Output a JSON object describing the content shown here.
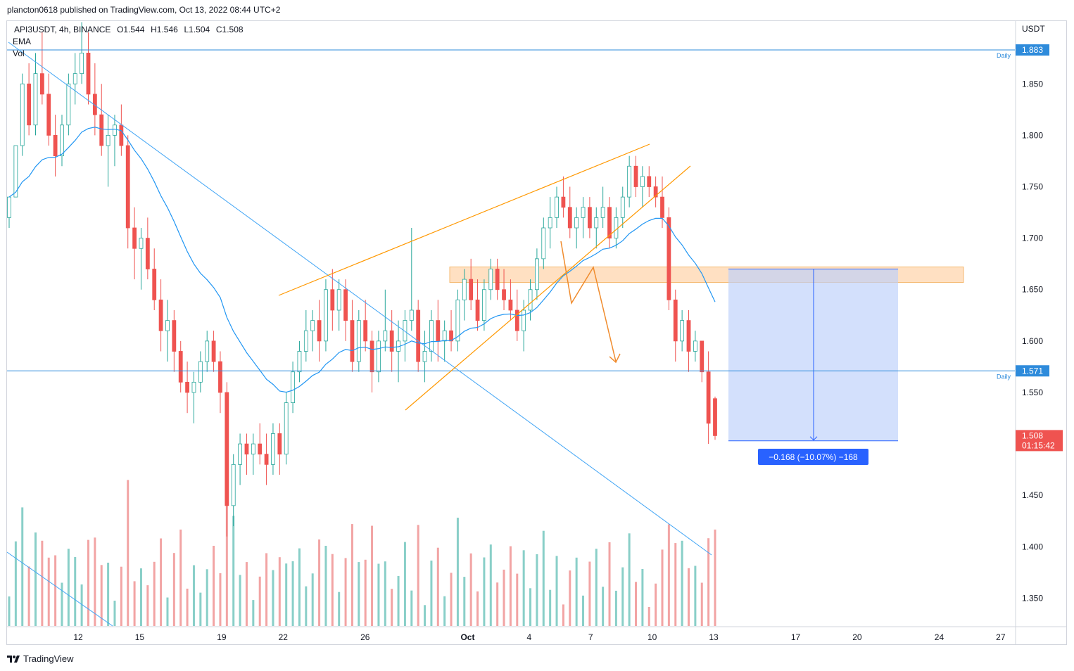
{
  "header": {
    "published": "plancton0618 published on TradingView.com, Oct 13, 2022 08:44 UTC+2"
  },
  "legend": {
    "symbol": "API3USDT, 4h, BINANCE",
    "open": "O1.544",
    "high": "H1.546",
    "low": "L1.504",
    "close": "C1.508",
    "indicators": [
      "EMA",
      "Vol"
    ]
  },
  "footer": {
    "brand": "TradingView"
  },
  "colors": {
    "up": "#26a69a",
    "down": "#ef5350",
    "vol_up": "#89cfc8",
    "vol_down": "#f2a4a4",
    "ema": "#2196f3",
    "trend": "#42a5f5",
    "wedge": "#ff9800",
    "zone": "#ffcc99",
    "measure": "#2962ff",
    "measure_fill": "#bbcffb",
    "price_tag": "#ef5350",
    "daily_tag": "#2e8bdb"
  },
  "chart_data": {
    "type": "candlestick",
    "symbol": "API3USDT",
    "interval": "4h",
    "exchange": "BINANCE",
    "y_axis": {
      "unit": "USDT",
      "ticks": [
        1.85,
        1.8,
        1.75,
        1.7,
        1.65,
        1.6,
        1.55,
        1.45,
        1.4,
        1.35
      ],
      "tick_labels": [
        "1.850",
        "1.800",
        "1.750",
        "1.700",
        "1.650",
        "1.600",
        "1.550",
        "1.450",
        "1.400",
        "1.350"
      ],
      "range": [
        1.32,
        1.926
      ]
    },
    "x_axis": {
      "ticks": [
        "12",
        "15",
        "19",
        "22",
        "26",
        "Oct",
        "4",
        "7",
        "10",
        "13",
        "17",
        "20",
        "24",
        "27"
      ],
      "tick_day_index": [
        12,
        15,
        19,
        22,
        26,
        31,
        34,
        37,
        40,
        43,
        47,
        50,
        54,
        57
      ],
      "range_days": [
        8.6,
        60.2
      ]
    },
    "horizontal_levels": [
      {
        "label": "1.883",
        "price": 1.883,
        "note": "Daily"
      },
      {
        "label": "1.571",
        "price": 1.571,
        "note": "Daily"
      }
    ],
    "last_price": {
      "label": "1.508",
      "price": 1.508,
      "countdown": "01:15:42"
    },
    "measure": {
      "label": "−0.168 (−10.07%) −168",
      "from_price": 1.67,
      "to_price": 1.503
    },
    "zone": {
      "top_price": 1.672,
      "bottom_price": 1.657
    },
    "candles": [
      [
        1.72,
        1.74,
        1.71,
        1.74
      ],
      [
        1.74,
        1.79,
        1.74,
        1.79
      ],
      [
        1.79,
        1.86,
        1.78,
        1.85
      ],
      [
        1.85,
        1.87,
        1.8,
        1.81
      ],
      [
        1.81,
        1.88,
        1.8,
        1.86
      ],
      [
        1.86,
        1.9,
        1.83,
        1.84
      ],
      [
        1.84,
        1.86,
        1.79,
        1.8
      ],
      [
        1.8,
        1.82,
        1.76,
        1.78
      ],
      [
        1.78,
        1.82,
        1.77,
        1.81
      ],
      [
        1.81,
        1.86,
        1.8,
        1.85
      ],
      [
        1.85,
        1.88,
        1.83,
        1.86
      ],
      [
        1.86,
        1.91,
        1.85,
        1.88
      ],
      [
        1.88,
        1.9,
        1.83,
        1.84
      ],
      [
        1.84,
        1.87,
        1.8,
        1.82
      ],
      [
        1.82,
        1.85,
        1.78,
        1.79
      ],
      [
        1.79,
        1.82,
        1.75,
        1.8
      ],
      [
        1.8,
        1.82,
        1.77,
        1.81
      ],
      [
        1.81,
        1.83,
        1.78,
        1.79
      ],
      [
        1.79,
        1.8,
        1.69,
        1.71
      ],
      [
        1.71,
        1.73,
        1.66,
        1.69
      ],
      [
        1.69,
        1.71,
        1.65,
        1.7
      ],
      [
        1.7,
        1.72,
        1.66,
        1.67
      ],
      [
        1.67,
        1.69,
        1.63,
        1.64
      ],
      [
        1.64,
        1.66,
        1.59,
        1.61
      ],
      [
        1.61,
        1.64,
        1.58,
        1.62
      ],
      [
        1.62,
        1.63,
        1.57,
        1.59
      ],
      [
        1.59,
        1.6,
        1.55,
        1.56
      ],
      [
        1.56,
        1.58,
        1.53,
        1.55
      ],
      [
        1.55,
        1.57,
        1.52,
        1.56
      ],
      [
        1.56,
        1.59,
        1.55,
        1.58
      ],
      [
        1.58,
        1.61,
        1.57,
        1.6
      ],
      [
        1.6,
        1.61,
        1.57,
        1.58
      ],
      [
        1.58,
        1.59,
        1.53,
        1.55
      ],
      [
        1.55,
        1.56,
        1.41,
        1.44
      ],
      [
        1.44,
        1.49,
        1.42,
        1.48
      ],
      [
        1.48,
        1.51,
        1.46,
        1.5
      ],
      [
        1.5,
        1.51,
        1.47,
        1.49
      ],
      [
        1.49,
        1.51,
        1.47,
        1.5
      ],
      [
        1.5,
        1.52,
        1.48,
        1.49
      ],
      [
        1.49,
        1.51,
        1.46,
        1.48
      ],
      [
        1.48,
        1.52,
        1.47,
        1.51
      ],
      [
        1.51,
        1.52,
        1.47,
        1.49
      ],
      [
        1.49,
        1.55,
        1.48,
        1.54
      ],
      [
        1.54,
        1.58,
        1.53,
        1.57
      ],
      [
        1.57,
        1.6,
        1.56,
        1.59
      ],
      [
        1.59,
        1.63,
        1.58,
        1.61
      ],
      [
        1.61,
        1.63,
        1.59,
        1.62
      ],
      [
        1.62,
        1.64,
        1.58,
        1.6
      ],
      [
        1.6,
        1.66,
        1.59,
        1.65
      ],
      [
        1.65,
        1.67,
        1.61,
        1.63
      ],
      [
        1.63,
        1.66,
        1.61,
        1.65
      ],
      [
        1.65,
        1.66,
        1.6,
        1.62
      ],
      [
        1.62,
        1.64,
        1.57,
        1.58
      ],
      [
        1.58,
        1.63,
        1.57,
        1.62
      ],
      [
        1.62,
        1.64,
        1.59,
        1.6
      ],
      [
        1.6,
        1.61,
        1.55,
        1.57
      ],
      [
        1.57,
        1.61,
        1.56,
        1.6
      ],
      [
        1.6,
        1.65,
        1.59,
        1.61
      ],
      [
        1.61,
        1.63,
        1.57,
        1.59
      ],
      [
        1.59,
        1.62,
        1.56,
        1.6
      ],
      [
        1.6,
        1.63,
        1.58,
        1.62
      ],
      [
        1.62,
        1.71,
        1.61,
        1.63
      ],
      [
        1.63,
        1.64,
        1.57,
        1.58
      ],
      [
        1.58,
        1.61,
        1.56,
        1.59
      ],
      [
        1.59,
        1.63,
        1.58,
        1.62
      ],
      [
        1.62,
        1.64,
        1.58,
        1.6
      ],
      [
        1.6,
        1.62,
        1.58,
        1.61
      ],
      [
        1.61,
        1.63,
        1.59,
        1.6
      ],
      [
        1.6,
        1.65,
        1.59,
        1.64
      ],
      [
        1.64,
        1.67,
        1.62,
        1.66
      ],
      [
        1.66,
        1.68,
        1.63,
        1.64
      ],
      [
        1.64,
        1.66,
        1.61,
        1.62
      ],
      [
        1.62,
        1.66,
        1.61,
        1.65
      ],
      [
        1.65,
        1.68,
        1.64,
        1.67
      ],
      [
        1.67,
        1.68,
        1.64,
        1.65
      ],
      [
        1.65,
        1.67,
        1.63,
        1.64
      ],
      [
        1.64,
        1.66,
        1.62,
        1.63
      ],
      [
        1.63,
        1.65,
        1.6,
        1.61
      ],
      [
        1.61,
        1.64,
        1.59,
        1.63
      ],
      [
        1.63,
        1.66,
        1.62,
        1.65
      ],
      [
        1.65,
        1.69,
        1.64,
        1.68
      ],
      [
        1.68,
        1.72,
        1.67,
        1.71
      ],
      [
        1.71,
        1.74,
        1.69,
        1.72
      ],
      [
        1.72,
        1.75,
        1.71,
        1.74
      ],
      [
        1.74,
        1.76,
        1.72,
        1.73
      ],
      [
        1.73,
        1.75,
        1.7,
        1.71
      ],
      [
        1.71,
        1.73,
        1.69,
        1.72
      ],
      [
        1.72,
        1.74,
        1.7,
        1.73
      ],
      [
        1.73,
        1.74,
        1.7,
        1.71
      ],
      [
        1.71,
        1.73,
        1.69,
        1.72
      ],
      [
        1.72,
        1.75,
        1.71,
        1.73
      ],
      [
        1.73,
        1.74,
        1.69,
        1.7
      ],
      [
        1.7,
        1.73,
        1.69,
        1.72
      ],
      [
        1.72,
        1.75,
        1.71,
        1.74
      ],
      [
        1.74,
        1.78,
        1.73,
        1.77
      ],
      [
        1.77,
        1.78,
        1.74,
        1.75
      ],
      [
        1.75,
        1.77,
        1.73,
        1.76
      ],
      [
        1.76,
        1.77,
        1.74,
        1.75
      ],
      [
        1.75,
        1.76,
        1.73,
        1.74
      ],
      [
        1.74,
        1.76,
        1.71,
        1.72
      ],
      [
        1.72,
        1.73,
        1.63,
        1.64
      ],
      [
        1.64,
        1.65,
        1.58,
        1.6
      ],
      [
        1.6,
        1.63,
        1.59,
        1.62
      ],
      [
        1.62,
        1.63,
        1.57,
        1.59
      ],
      [
        1.59,
        1.61,
        1.58,
        1.6
      ],
      [
        1.6,
        1.6,
        1.56,
        1.57
      ],
      [
        1.57,
        1.59,
        1.5,
        1.52
      ],
      [
        1.544,
        1.546,
        1.504,
        1.508
      ]
    ],
    "ema_note": "EMA line drawn from candle closes"
  }
}
